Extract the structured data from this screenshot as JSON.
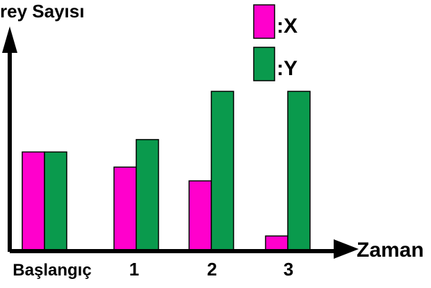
{
  "chart_data": {
    "type": "bar",
    "ylabel": "rey Sayısı",
    "xlabel": "Zaman",
    "categories": [
      "Başlangıç",
      "1",
      "2",
      "3"
    ],
    "series": [
      {
        "name": ":X",
        "color": "#ff00cc",
        "values": [
          7.2,
          6.1,
          5.1,
          1.1
        ]
      },
      {
        "name": ":Y",
        "color": "#0a9a4d",
        "values": [
          7.2,
          8.1,
          11.6,
          11.6
        ]
      }
    ],
    "ylim": [
      0,
      15
    ],
    "grid": false,
    "legend": "top-right"
  }
}
